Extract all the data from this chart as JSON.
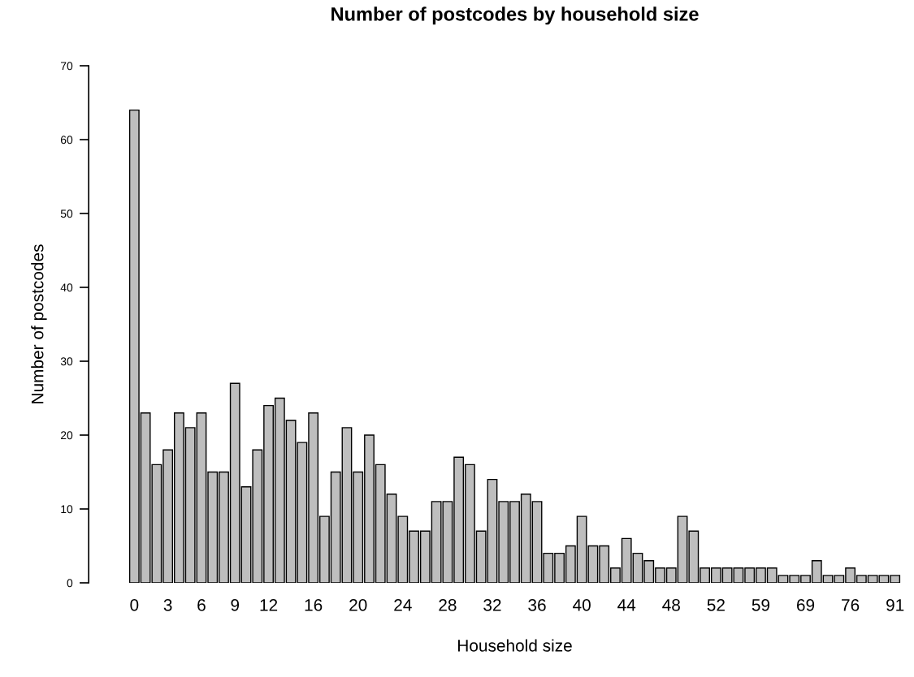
{
  "chart_data": {
    "type": "bar",
    "title": "Number of postcodes by household size",
    "xlabel": "Household size",
    "ylabel": "Number of postcodes",
    "categories": [
      "0",
      null,
      null,
      "3",
      null,
      null,
      "6",
      null,
      null,
      "9",
      null,
      null,
      "12",
      null,
      null,
      null,
      "16",
      null,
      null,
      null,
      "20",
      null,
      null,
      null,
      "24",
      null,
      null,
      null,
      "28",
      null,
      null,
      null,
      "32",
      null,
      null,
      null,
      "36",
      null,
      null,
      null,
      "40",
      null,
      null,
      null,
      "44",
      null,
      null,
      null,
      "48",
      null,
      null,
      null,
      "52",
      null,
      null,
      null,
      "59",
      null,
      null,
      null,
      "69",
      null,
      null,
      null,
      "76",
      null,
      null,
      null,
      "91"
    ],
    "values": [
      64,
      23,
      16,
      18,
      23,
      21,
      23,
      15,
      15,
      27,
      13,
      18,
      24,
      25,
      22,
      19,
      23,
      9,
      15,
      21,
      15,
      20,
      16,
      12,
      9,
      7,
      7,
      11,
      11,
      17,
      16,
      7,
      14,
      11,
      11,
      12,
      11,
      4,
      4,
      5,
      9,
      5,
      5,
      2,
      6,
      4,
      3,
      2,
      2,
      9,
      7,
      2,
      2,
      2,
      2,
      2,
      2,
      2,
      1,
      1,
      1,
      3,
      1,
      1,
      2,
      1,
      1,
      1,
      1
    ],
    "color": "#bebebe",
    "ylim": [
      0,
      70
    ],
    "yticks": [
      0,
      10,
      20,
      30,
      40,
      50,
      60,
      70
    ],
    "grid": false,
    "legend": false
  }
}
